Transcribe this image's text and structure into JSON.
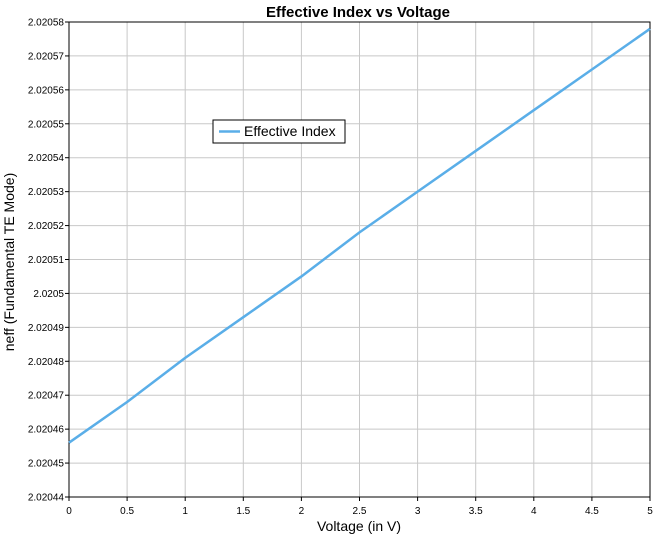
{
  "chart_data": {
    "type": "line",
    "title": "Effective Index vs Voltage",
    "xlabel": "Voltage (in V)",
    "ylabel": "neff (Fundamental TE Mode)",
    "xlim": [
      0,
      5
    ],
    "ylim": [
      2.02044,
      2.02058
    ],
    "x_ticks": [
      "0",
      "0.5",
      "1",
      "1.5",
      "2",
      "2.5",
      "3",
      "3.5",
      "4",
      "4.5",
      "5"
    ],
    "y_ticks": [
      "2.02044",
      "2.02045",
      "2.02046",
      "2.02047",
      "2.02048",
      "2.02049",
      "2.0205",
      "2.02051",
      "2.02052",
      "2.02053",
      "2.02054",
      "2.02055",
      "2.02056",
      "2.02057",
      "2.02058"
    ],
    "grid": true,
    "legend_position": "upper-left-center",
    "series": [
      {
        "name": "Effective Index",
        "color": "#5aaee8",
        "x": [
          0,
          0.5,
          1,
          1.5,
          2,
          2.5,
          3,
          3.5,
          4,
          4.5,
          5
        ],
        "y": [
          2.020456,
          2.020468,
          2.020481,
          2.020493,
          2.020505,
          2.020518,
          2.02053,
          2.020542,
          2.020554,
          2.020566,
          2.020578
        ]
      }
    ]
  }
}
